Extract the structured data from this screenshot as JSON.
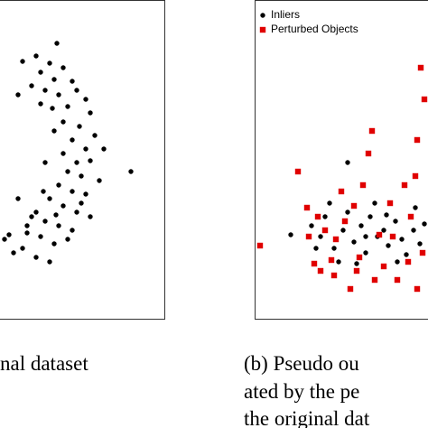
{
  "chart_data": [
    {
      "type": "scatter",
      "xlim": [
        0,
        182
      ],
      "ylim": [
        353,
        0
      ],
      "series": [
        {
          "color": "#000000",
          "marker": "circle",
          "x": [
            63,
            40,
            55,
            70,
            25,
            45,
            60,
            80,
            35,
            50,
            65,
            85,
            95,
            45,
            58,
            75,
            100,
            20,
            70,
            88,
            60,
            105,
            80,
            95,
            70,
            85,
            100,
            75,
            90,
            110,
            145,
            65,
            80,
            95,
            55,
            70,
            85,
            40,
            20,
            50,
            65,
            80,
            30,
            10,
            45,
            60,
            75,
            25,
            5,
            40,
            55,
            15,
            35,
            90,
            100,
            50,
            115,
            30,
            62,
            48
          ],
          "y": [
            48,
            62,
            70,
            75,
            68,
            80,
            88,
            90,
            95,
            100,
            105,
            100,
            110,
            115,
            120,
            118,
            125,
            105,
            135,
            140,
            145,
            150,
            155,
            165,
            170,
            180,
            178,
            190,
            195,
            200,
            190,
            205,
            212,
            215,
            220,
            228,
            235,
            235,
            220,
            245,
            250,
            255,
            250,
            260,
            262,
            270,
            265,
            275,
            265,
            285,
            290,
            280,
            240,
            225,
            240,
            180,
            165,
            258,
            238,
            212
          ]
        }
      ]
    },
    {
      "type": "scatter",
      "xlim": [
        0,
        198
      ],
      "ylim": [
        353,
        0
      ],
      "legend": "upper left",
      "series": [
        {
          "name": "Inliers",
          "color": "#000000",
          "marker": "circle",
          "x": [
            40,
            63,
            73,
            78,
            88,
            98,
            103,
            110,
            118,
            123,
            128,
            136,
            143,
            148,
            156,
            163,
            168,
            176,
            183,
            188,
            93,
            113,
            158,
            83,
            133,
            103,
            178,
            68,
            146,
            123
          ],
          "y": [
            260,
            250,
            262,
            240,
            275,
            255,
            235,
            268,
            250,
            280,
            240,
            262,
            255,
            272,
            245,
            265,
            282,
            255,
            270,
            248,
            290,
            292,
            290,
            225,
            225,
            180,
            230,
            275,
            238,
            262
          ]
        },
        {
          "name": "Perturbed Objects",
          "color": "#e00000",
          "marker": "square",
          "x": [
            6,
            48,
            58,
            66,
            73,
            78,
            88,
            96,
            100,
            106,
            113,
            116,
            120,
            126,
            130,
            138,
            143,
            150,
            158,
            166,
            173,
            178,
            180,
            184,
            188,
            180,
            186,
            70,
            90,
            110,
            153,
            170,
            133,
            85,
            60
          ],
          "y": [
            272,
            190,
            230,
            292,
            300,
            255,
            305,
            212,
            245,
            320,
            300,
            285,
            205,
            170,
            145,
            260,
            295,
            225,
            310,
            205,
            240,
            195,
            155,
            75,
            110,
            320,
            280,
            240,
            265,
            228,
            262,
            290,
            310,
            288,
            262
          ]
        }
      ]
    }
  ],
  "captions": {
    "a": "nal dataset",
    "b": [
      "(b) Pseudo ou",
      "ated by the pe",
      "the original dat"
    ]
  }
}
